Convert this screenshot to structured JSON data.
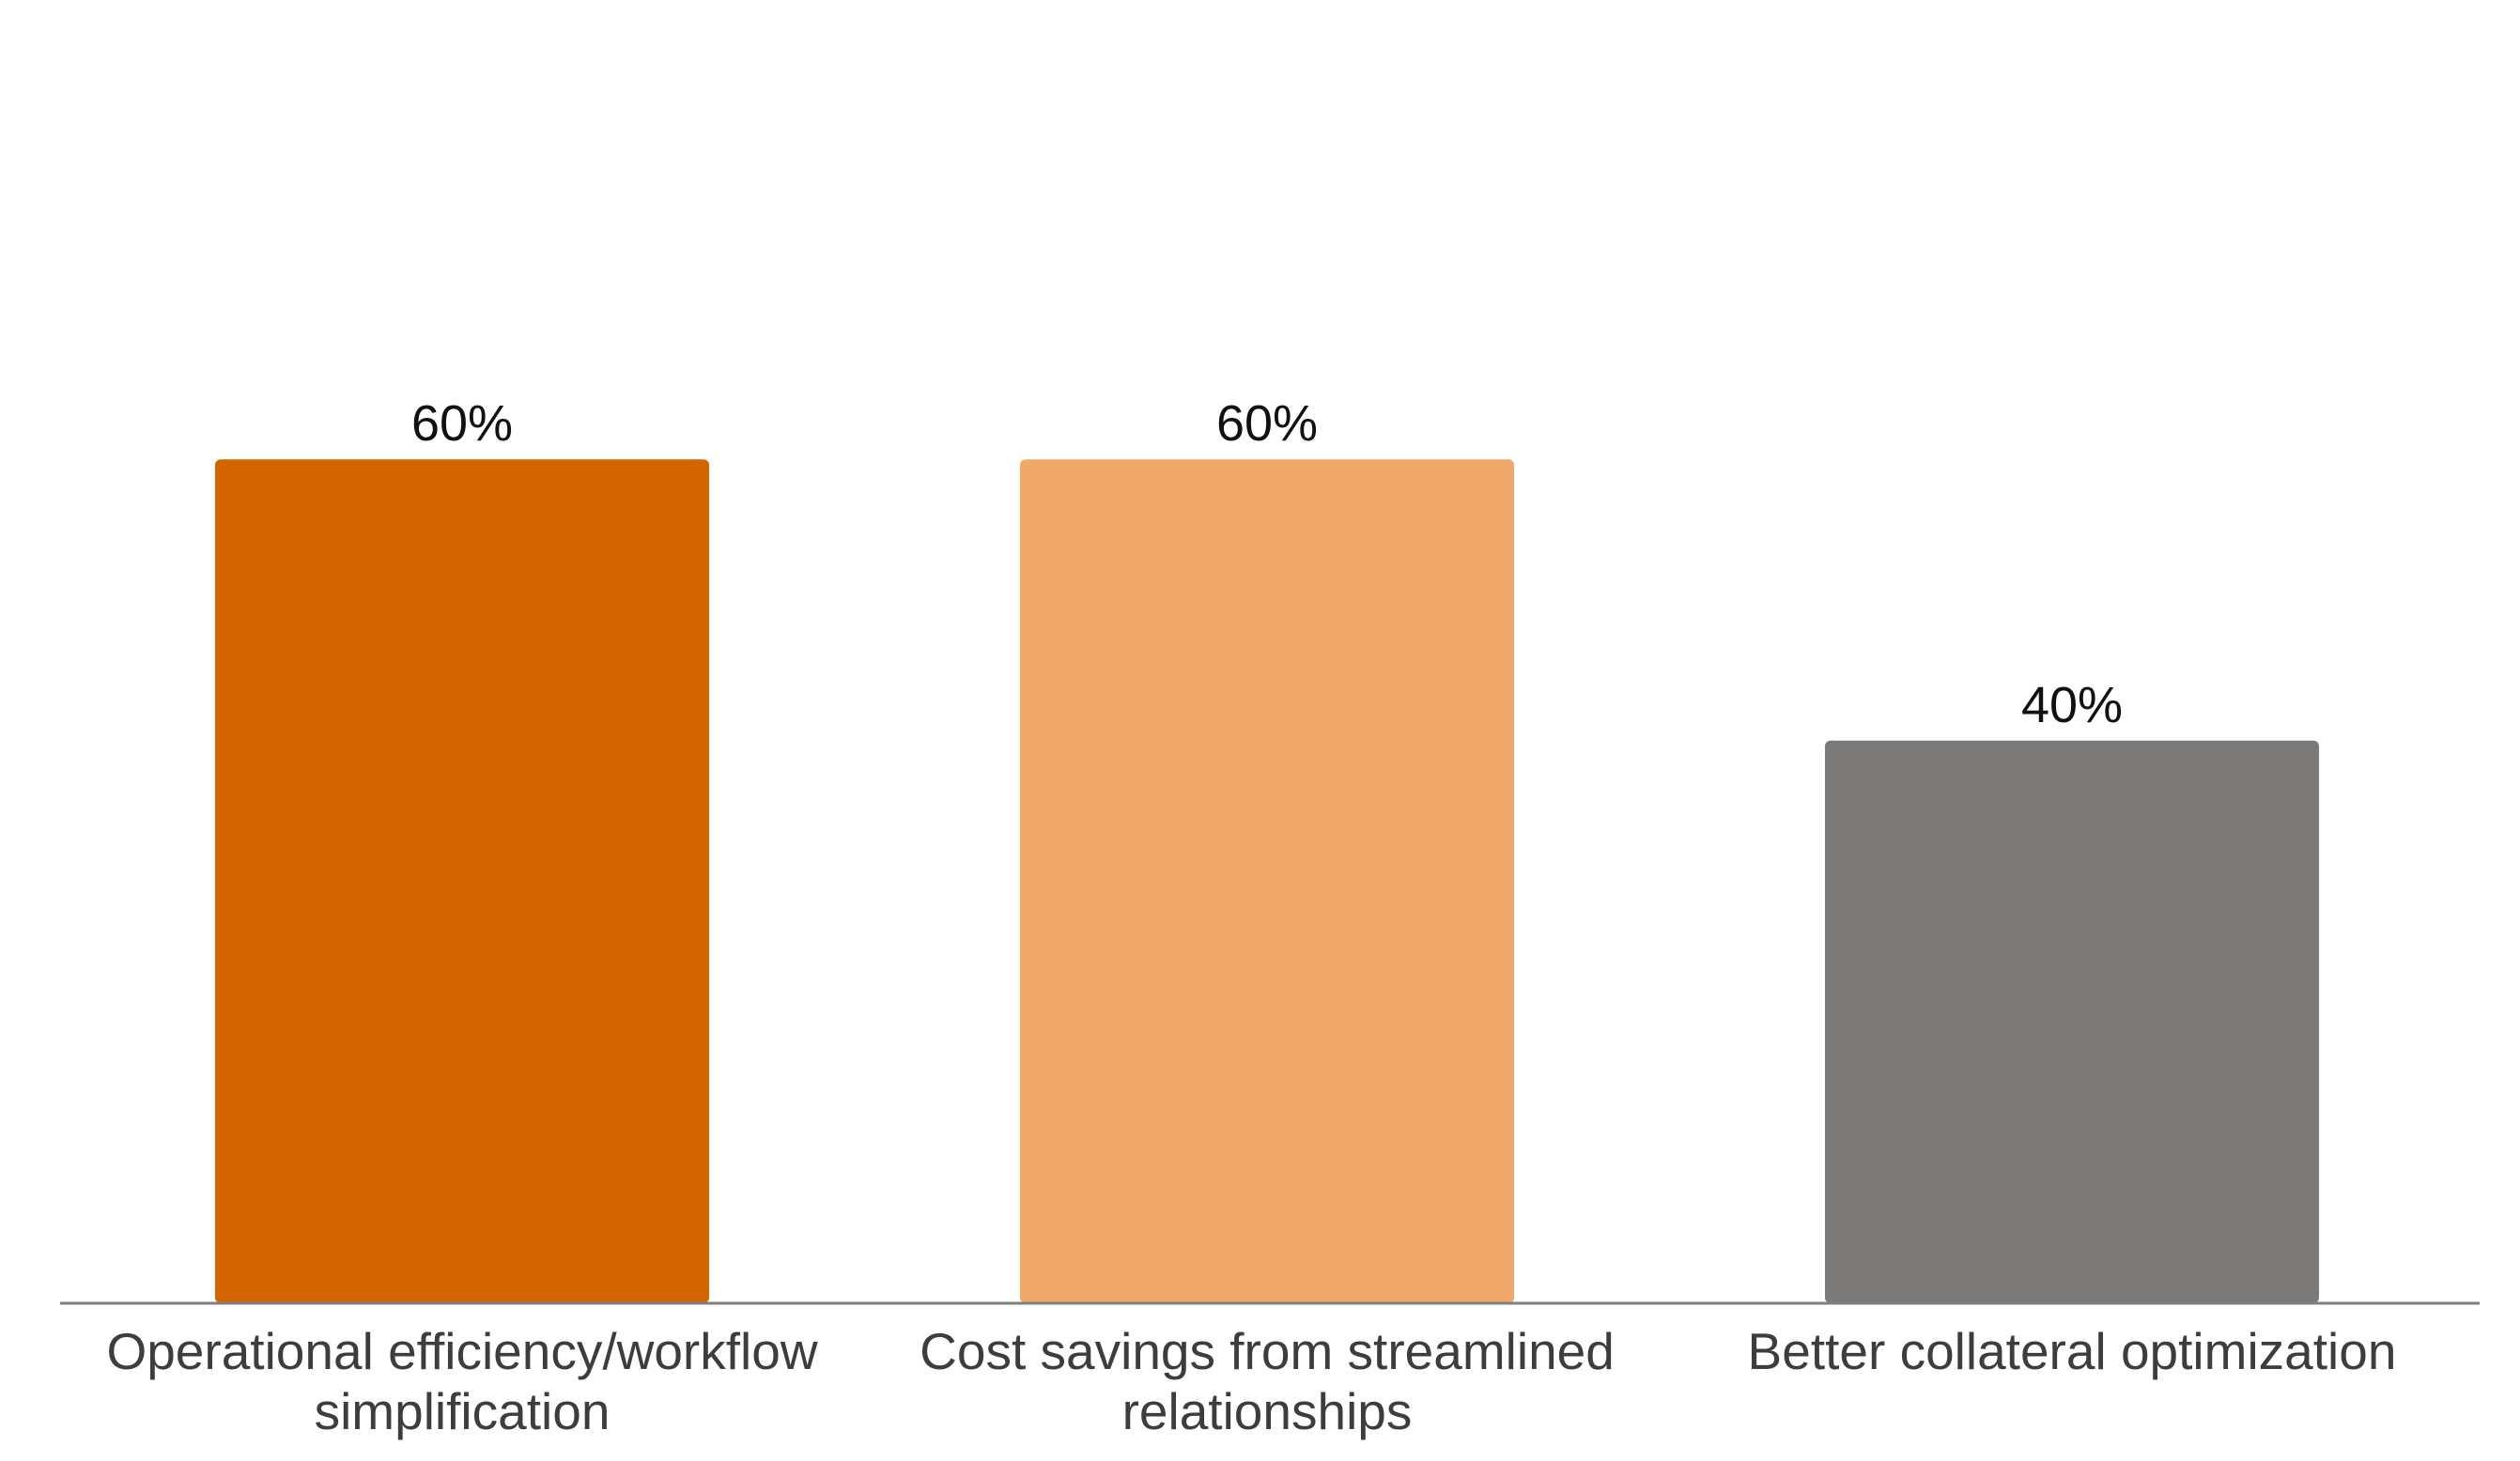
{
  "chart_data": {
    "type": "bar",
    "title": "",
    "xlabel": "",
    "ylabel": "",
    "categories": [
      [
        "Operational efficiency/workflow",
        "simplification"
      ],
      [
        "Cost savings from streamlined",
        "relationships"
      ],
      [
        "Better collateral optimization"
      ]
    ],
    "values": [
      60,
      60,
      40
    ],
    "value_labels": [
      "60%",
      "60%",
      "40%"
    ],
    "colors": [
      "#D36500",
      "#F0A96B",
      "#7B7A78"
    ],
    "axis_color": "#7f7f7f",
    "ylim": [
      0,
      100
    ],
    "grid": false,
    "legend": "none"
  }
}
